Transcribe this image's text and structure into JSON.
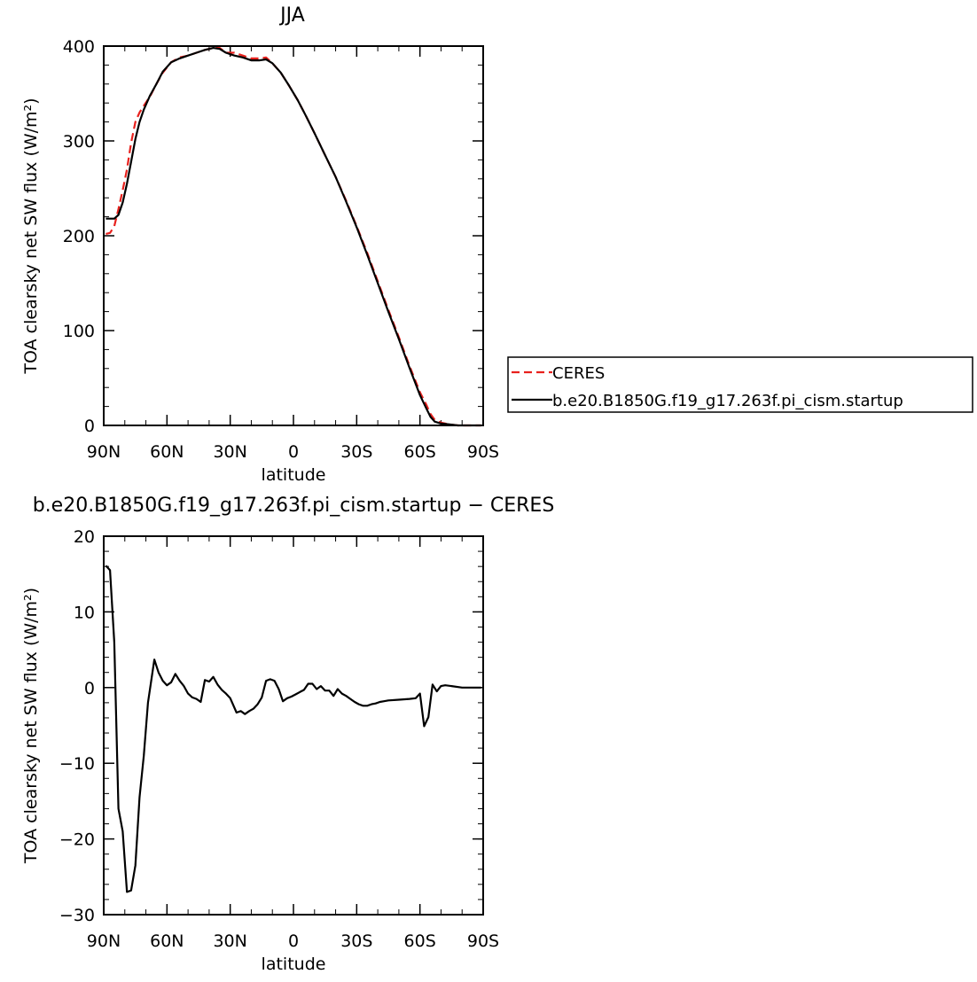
{
  "chart_data": [
    {
      "type": "line",
      "title": "JJA",
      "xlabel": "latitude",
      "ylabel": "TOA clearsky net SW flux (W/m²)",
      "xlim": [
        90,
        -90
      ],
      "ylim": [
        0,
        400
      ],
      "xticks": [
        {
          "value": 90,
          "label": "90N"
        },
        {
          "value": 60,
          "label": "60N"
        },
        {
          "value": 30,
          "label": "30N"
        },
        {
          "value": 0,
          "label": "0"
        },
        {
          "value": -30,
          "label": "30S"
        },
        {
          "value": -60,
          "label": "60S"
        },
        {
          "value": -90,
          "label": "90S"
        }
      ],
      "yticks": [
        {
          "value": 0,
          "label": "0"
        },
        {
          "value": 100,
          "label": "100"
        },
        {
          "value": 200,
          "label": "200"
        },
        {
          "value": 300,
          "label": "300"
        },
        {
          "value": 400,
          "label": "400"
        }
      ],
      "legend_position": "right",
      "series": [
        {
          "name": "CERES",
          "color": "#e8211d",
          "dash": "dashed",
          "x": [
            89,
            87,
            85,
            83,
            81,
            79,
            77,
            75,
            73,
            71,
            68,
            65,
            62,
            58,
            54,
            50,
            46,
            42,
            38,
            35,
            32,
            28,
            24,
            20,
            16,
            13,
            10,
            6,
            2,
            -2,
            -6,
            -10,
            -15,
            -20,
            -25,
            -30,
            -35,
            -40,
            -45,
            -50,
            -55,
            -60,
            -63,
            -65,
            -67,
            -70,
            -74,
            -78,
            -82,
            -86,
            -89
          ],
          "values": [
            202,
            203,
            210,
            228,
            248,
            270,
            298,
            320,
            330,
            337,
            347,
            360,
            372,
            383,
            388,
            390,
            393,
            396,
            398,
            398,
            393,
            393,
            390,
            387,
            387,
            388,
            382,
            372,
            358,
            343,
            326,
            308,
            285,
            262,
            237,
            210,
            182,
            152,
            122,
            93,
            63,
            35,
            22,
            12,
            6,
            3,
            1,
            0,
            0,
            0,
            0
          ]
        },
        {
          "name": "b.e20.B1850G.f19_g17.263f.pi_cism.startup",
          "color": "#000000",
          "dash": "solid",
          "x": [
            89,
            87,
            85,
            83,
            81,
            79,
            77,
            75,
            73,
            71,
            68,
            65,
            62,
            58,
            54,
            50,
            46,
            42,
            38,
            35,
            32,
            28,
            24,
            20,
            16,
            13,
            10,
            6,
            2,
            -2,
            -6,
            -10,
            -15,
            -20,
            -25,
            -30,
            -35,
            -40,
            -45,
            -50,
            -55,
            -60,
            -63,
            -65,
            -67,
            -70,
            -74,
            -78,
            -82,
            -86,
            -89
          ],
          "values": [
            218,
            218,
            218,
            222,
            235,
            255,
            278,
            302,
            320,
            333,
            348,
            360,
            373,
            383,
            387,
            390,
            393,
            396,
            398,
            397,
            393,
            390,
            388,
            385,
            385,
            386,
            382,
            372,
            358,
            343,
            326,
            308,
            285,
            262,
            236,
            209,
            180,
            150,
            120,
            91,
            61,
            32,
            18,
            9,
            4,
            2,
            1,
            0,
            0,
            0,
            0
          ]
        }
      ]
    },
    {
      "type": "line",
      "title": "b.e20.B1850G.f19_g17.263f.pi_cism.startup − CERES",
      "xlabel": "latitude",
      "ylabel": "TOA clearsky net SW flux (W/m²)",
      "xlim": [
        90,
        -90
      ],
      "ylim": [
        -30,
        20
      ],
      "xticks": [
        {
          "value": 90,
          "label": "90N"
        },
        {
          "value": 60,
          "label": "60N"
        },
        {
          "value": 30,
          "label": "30N"
        },
        {
          "value": 0,
          "label": "0"
        },
        {
          "value": -30,
          "label": "30S"
        },
        {
          "value": -60,
          "label": "60S"
        },
        {
          "value": -90,
          "label": "90S"
        }
      ],
      "yticks": [
        {
          "value": -30,
          "label": "−30"
        },
        {
          "value": -20,
          "label": "−20"
        },
        {
          "value": -10,
          "label": "−10"
        },
        {
          "value": 0,
          "label": "0"
        },
        {
          "value": 10,
          "label": "10"
        },
        {
          "value": 20,
          "label": "20"
        }
      ],
      "series": [
        {
          "color": "#000000",
          "dash": "solid",
          "x": [
            89,
            87,
            85,
            83,
            81,
            79,
            77,
            75,
            73,
            71,
            69,
            66,
            64,
            62,
            60,
            58,
            56,
            54,
            52,
            50,
            48,
            46,
            44,
            42,
            40,
            38,
            36,
            34,
            32,
            30,
            27,
            25,
            23,
            21,
            19,
            17,
            15,
            13,
            11,
            9,
            7,
            5,
            3,
            1,
            -1,
            -3,
            -5,
            -7,
            -9,
            -11,
            -13,
            -15,
            -17,
            -19,
            -21,
            -23,
            -25,
            -27,
            -29,
            -31,
            -33,
            -35,
            -37,
            -39,
            -41,
            -43,
            -45,
            -50,
            -55,
            -58,
            -60,
            -62,
            -64,
            -66,
            -68,
            -70,
            -72,
            -75,
            -80,
            -85,
            -89
          ],
          "values": [
            16.1,
            15.5,
            6,
            -16,
            -19,
            -27,
            -26.8,
            -23.5,
            -14.5,
            -9,
            -2,
            3.7,
            2.0,
            0.9,
            0.3,
            0.7,
            1.8,
            0.9,
            0.2,
            -0.8,
            -1.3,
            -1.5,
            -1.9,
            1.0,
            0.8,
            1.4,
            0.4,
            -0.3,
            -0.8,
            -1.4,
            -3.3,
            -3.1,
            -3.5,
            -3.1,
            -2.8,
            -2.2,
            -1.3,
            0.9,
            1.1,
            0.9,
            -0.2,
            -1.8,
            -1.4,
            -1.2,
            -0.9,
            -0.6,
            -0.3,
            0.5,
            0.5,
            -0.2,
            0.2,
            -0.4,
            -0.4,
            -1.1,
            -0.2,
            -0.8,
            -1.1,
            -1.5,
            -1.9,
            -2.2,
            -2.4,
            -2.4,
            -2.2,
            -2.1,
            -1.9,
            -1.8,
            -1.7,
            -1.6,
            -1.5,
            -1.4,
            -0.8,
            -5.1,
            -3.9,
            0.4,
            -0.5,
            0.2,
            0.3,
            0.2,
            0.0,
            0.0,
            0.0
          ]
        }
      ]
    }
  ]
}
